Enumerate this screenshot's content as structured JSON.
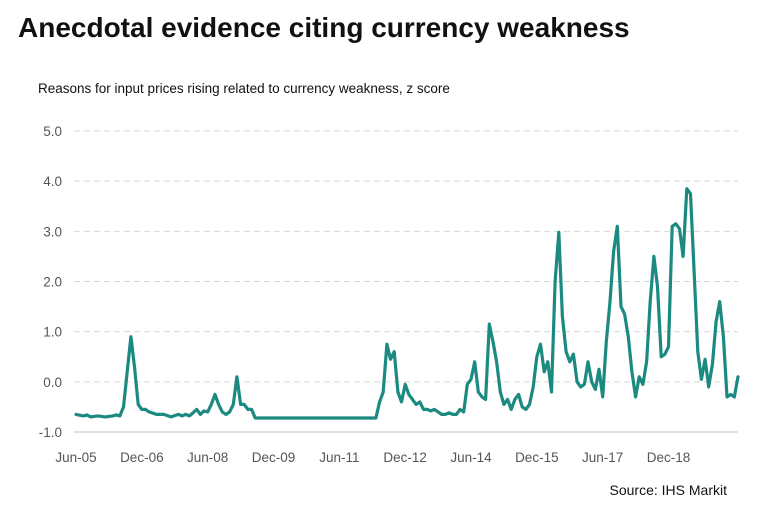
{
  "title": "Anecdotal evidence citing currency weakness",
  "source": "Source: IHS Markit",
  "chart_data": {
    "type": "line",
    "subtitle": "Reasons for input prices rising related to currency weakness, z score",
    "ylim": [
      -1.0,
      5.0
    ],
    "yticks": [
      "5.0",
      "4.0",
      "3.0",
      "2.0",
      "1.0",
      "0.0",
      "-1.0"
    ],
    "ytick_values": [
      5,
      4,
      3,
      2,
      1,
      0,
      -1
    ],
    "xticks": [
      "Jun-05",
      "Dec-06",
      "Jun-08",
      "Dec-09",
      "Jun-11",
      "Dec-12",
      "Jun-14",
      "Dec-15",
      "Jun-17",
      "Dec-18"
    ],
    "xtick_months": [
      0,
      18,
      36,
      54,
      72,
      90,
      108,
      126,
      144,
      162
    ],
    "grid": true,
    "color": "#1b8a80",
    "x_start": "Jun-05",
    "series": [
      {
        "values": [
          [
            0,
            -0.65
          ],
          [
            2,
            -0.68
          ],
          [
            3,
            -0.66
          ],
          [
            4,
            -0.7
          ],
          [
            6,
            -0.68
          ],
          [
            8,
            -0.7
          ],
          [
            10,
            -0.68
          ],
          [
            11,
            -0.66
          ],
          [
            12,
            -0.68
          ],
          [
            13,
            -0.5
          ],
          [
            14,
            0.2
          ],
          [
            15,
            0.9
          ],
          [
            16,
            0.3
          ],
          [
            17,
            -0.45
          ],
          [
            18,
            -0.55
          ],
          [
            19,
            -0.55
          ],
          [
            20,
            -0.6
          ],
          [
            22,
            -0.65
          ],
          [
            24,
            -0.65
          ],
          [
            26,
            -0.7
          ],
          [
            28,
            -0.65
          ],
          [
            29,
            -0.68
          ],
          [
            30,
            -0.65
          ],
          [
            31,
            -0.68
          ],
          [
            32,
            -0.62
          ],
          [
            33,
            -0.55
          ],
          [
            34,
            -0.65
          ],
          [
            35,
            -0.58
          ],
          [
            36,
            -0.6
          ],
          [
            37,
            -0.45
          ],
          [
            38,
            -0.25
          ],
          [
            39,
            -0.45
          ],
          [
            40,
            -0.6
          ],
          [
            41,
            -0.65
          ],
          [
            42,
            -0.6
          ],
          [
            43,
            -0.45
          ],
          [
            44,
            0.1
          ],
          [
            45,
            -0.45
          ],
          [
            46,
            -0.45
          ],
          [
            47,
            -0.55
          ],
          [
            48,
            -0.55
          ],
          [
            49,
            -0.72
          ],
          [
            50,
            -0.72
          ],
          [
            60,
            -0.72
          ],
          [
            70,
            -0.72
          ],
          [
            80,
            -0.72
          ],
          [
            82,
            -0.72
          ],
          [
            83,
            -0.4
          ],
          [
            84,
            -0.2
          ],
          [
            85,
            0.75
          ],
          [
            86,
            0.45
          ],
          [
            87,
            0.6
          ],
          [
            88,
            -0.2
          ],
          [
            89,
            -0.4
          ],
          [
            90,
            -0.05
          ],
          [
            91,
            -0.25
          ],
          [
            92,
            -0.35
          ],
          [
            93,
            -0.45
          ],
          [
            94,
            -0.4
          ],
          [
            95,
            -0.55
          ],
          [
            96,
            -0.55
          ],
          [
            97,
            -0.58
          ],
          [
            98,
            -0.55
          ],
          [
            99,
            -0.6
          ],
          [
            100,
            -0.65
          ],
          [
            101,
            -0.65
          ],
          [
            102,
            -0.62
          ],
          [
            103,
            -0.65
          ],
          [
            104,
            -0.65
          ],
          [
            105,
            -0.55
          ],
          [
            106,
            -0.6
          ],
          [
            107,
            -0.05
          ],
          [
            108,
            0.05
          ],
          [
            109,
            0.4
          ],
          [
            110,
            -0.2
          ],
          [
            111,
            -0.3
          ],
          [
            112,
            -0.35
          ],
          [
            113,
            1.15
          ],
          [
            114,
            0.8
          ],
          [
            115,
            0.4
          ],
          [
            116,
            -0.2
          ],
          [
            117,
            -0.45
          ],
          [
            118,
            -0.35
          ],
          [
            119,
            -0.55
          ],
          [
            120,
            -0.35
          ],
          [
            121,
            -0.25
          ],
          [
            122,
            -0.5
          ],
          [
            123,
            -0.55
          ],
          [
            124,
            -0.45
          ],
          [
            125,
            -0.1
          ],
          [
            126,
            0.5
          ],
          [
            127,
            0.75
          ],
          [
            128,
            0.2
          ],
          [
            129,
            0.4
          ],
          [
            130,
            -0.2
          ],
          [
            131,
            2.0
          ],
          [
            132,
            2.98
          ],
          [
            133,
            1.3
          ],
          [
            134,
            0.6
          ],
          [
            135,
            0.4
          ],
          [
            136,
            0.55
          ],
          [
            137,
            0.0
          ],
          [
            138,
            -0.1
          ],
          [
            139,
            -0.05
          ],
          [
            140,
            0.4
          ],
          [
            141,
            0.0
          ],
          [
            142,
            -0.15
          ],
          [
            143,
            0.25
          ],
          [
            144,
            -0.3
          ],
          [
            145,
            0.8
          ],
          [
            146,
            1.6
          ],
          [
            147,
            2.6
          ],
          [
            148,
            3.1
          ],
          [
            149,
            1.5
          ],
          [
            150,
            1.35
          ],
          [
            151,
            0.9
          ],
          [
            152,
            0.2
          ],
          [
            153,
            -0.3
          ],
          [
            154,
            0.1
          ],
          [
            155,
            -0.05
          ],
          [
            156,
            0.4
          ],
          [
            157,
            1.6
          ],
          [
            158,
            2.5
          ],
          [
            159,
            1.9
          ],
          [
            160,
            0.5
          ],
          [
            161,
            0.55
          ],
          [
            162,
            0.7
          ],
          [
            163,
            3.1
          ],
          [
            164,
            3.15
          ],
          [
            165,
            3.05
          ],
          [
            166,
            2.5
          ],
          [
            167,
            3.85
          ],
          [
            168,
            3.75
          ],
          [
            169,
            2.2
          ],
          [
            170,
            0.6
          ],
          [
            171,
            0.05
          ],
          [
            172,
            0.45
          ],
          [
            173,
            -0.1
          ],
          [
            174,
            0.35
          ],
          [
            175,
            1.2
          ],
          [
            176,
            1.6
          ],
          [
            177,
            0.9
          ],
          [
            178,
            -0.3
          ],
          [
            179,
            -0.25
          ],
          [
            180,
            -0.3
          ],
          [
            181,
            0.1
          ]
        ]
      }
    ]
  }
}
